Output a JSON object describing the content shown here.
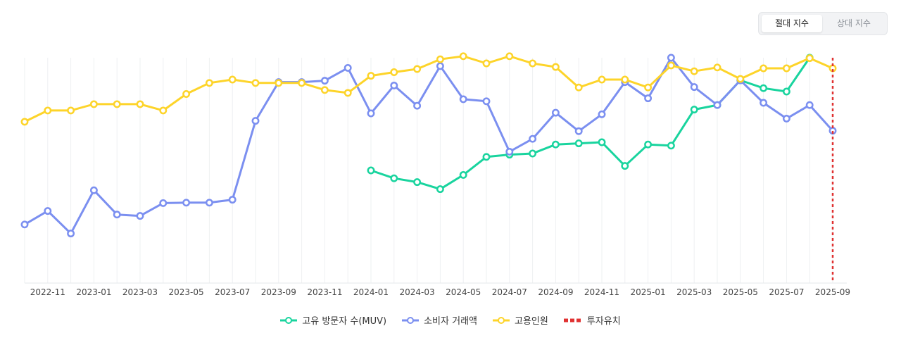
{
  "toggle": {
    "absolute_label": "절대 지수",
    "relative_label": "상대 지수"
  },
  "colors": {
    "muv": "#19d49e",
    "consumer": "#7b8ff0",
    "employment": "#fdd42a",
    "investment": "#e03131",
    "grid": "#eef0f2"
  },
  "chart_data": {
    "type": "line",
    "title": "",
    "xlabel": "",
    "ylabel": "",
    "y_scale": "relative index (no visible axis)",
    "ylim": [
      0,
      100
    ],
    "x": [
      "2022-10",
      "2022-11",
      "2022-12",
      "2023-01",
      "2023-02",
      "2023-03",
      "2023-04",
      "2023-05",
      "2023-06",
      "2023-07",
      "2023-08",
      "2023-09",
      "2023-10",
      "2023-11",
      "2023-12",
      "2024-01",
      "2024-02",
      "2024-03",
      "2024-04",
      "2024-05",
      "2024-06",
      "2024-07",
      "2024-08",
      "2024-09",
      "2024-10",
      "2024-11",
      "2024-12",
      "2025-01",
      "2025-02",
      "2025-03",
      "2025-04",
      "2025-05",
      "2025-06",
      "2025-07",
      "2025-08",
      "2025-09"
    ],
    "x_tick_labels": [
      "2022-11",
      "2023-01",
      "2023-03",
      "2023-05",
      "2023-07",
      "2023-09",
      "2023-11",
      "2024-01",
      "2024-03",
      "2024-05",
      "2024-07",
      "2024-09",
      "2024-11",
      "2025-01",
      "2025-03",
      "2025-05",
      "2025-07",
      "2025-09"
    ],
    "series": [
      {
        "name": "고유 방문자 수(MUV)",
        "key": "muv",
        "values": [
          null,
          null,
          null,
          null,
          null,
          null,
          null,
          null,
          null,
          null,
          null,
          null,
          null,
          null,
          null,
          50,
          46.5,
          44.8,
          41.7,
          48,
          56,
          57,
          57.5,
          61.5,
          62,
          62.5,
          52,
          61.5,
          61,
          77,
          79,
          90,
          86.5,
          85,
          100,
          null
        ]
      },
      {
        "name": "소비자 거래액",
        "key": "consumer",
        "values": [
          26,
          32,
          22,
          41.2,
          30.4,
          29.8,
          35.5,
          35.7,
          35.7,
          37,
          72,
          89.2,
          89.2,
          89.8,
          95.5,
          75.3,
          87.7,
          78.7,
          96.3,
          81.6,
          80.7,
          58.3,
          64,
          75.6,
          67.4,
          74.9,
          89.2,
          82,
          100,
          87,
          79,
          90,
          80,
          73,
          79,
          67.6
        ]
      },
      {
        "name": "고용인원",
        "key": "employment",
        "values": [
          71.6,
          76.6,
          76.6,
          79.4,
          79.4,
          79.4,
          76.6,
          83.9,
          88.8,
          90.3,
          88.8,
          88.8,
          88.8,
          85.7,
          84.4,
          92,
          93.6,
          95,
          99.3,
          100.7,
          97.5,
          100.7,
          97.5,
          95.9,
          86.8,
          90.3,
          90.3,
          86.8,
          96.6,
          94,
          95.7,
          90.6,
          95.3,
          95.3,
          99.8,
          95.3
        ]
      },
      {
        "name": "투자유치",
        "key": "investment",
        "marker": "vertical-dashed-line",
        "x": "2025-09"
      }
    ],
    "legend": [
      "고유 방문자 수(MUV)",
      "소비자 거래액",
      "고용인원",
      "투자유치"
    ],
    "legend_position": "bottom-center",
    "grid": "vertical"
  }
}
